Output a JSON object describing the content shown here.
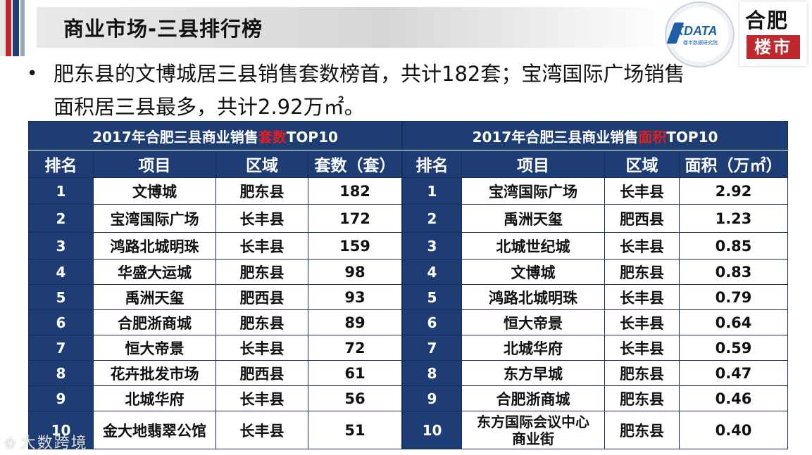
{
  "page": {
    "title": "商业市场-三县排行榜",
    "bullet_line1": "肥东县的文博城居三县销售套数榜首，共计182套；宝湾国际广场销售",
    "bullet_line2": "面积居三县最多，共计2.92万㎡。"
  },
  "logos": {
    "kdata_text": "KDATA",
    "kdata_sub": "楼市数据研究院",
    "hefei_top": "合肥",
    "hefei_bottom": "楼市"
  },
  "watermark": "大数跨境",
  "left_table": {
    "caption_prefix": "2017年合肥三县商业销售",
    "caption_highlight": "套数",
    "caption_suffix": "TOP10",
    "headers": [
      "排名",
      "项目",
      "区域",
      "套数（套）"
    ],
    "rows": [
      [
        "1",
        "文博城",
        "肥东县",
        "182"
      ],
      [
        "2",
        "宝湾国际广场",
        "长丰县",
        "172"
      ],
      [
        "3",
        "鸿路北城明珠",
        "长丰县",
        "159"
      ],
      [
        "4",
        "华盛大运城",
        "肥东县",
        "98"
      ],
      [
        "5",
        "禹洲天玺",
        "肥西县",
        "93"
      ],
      [
        "6",
        "合肥浙商城",
        "肥东县",
        "89"
      ],
      [
        "7",
        "恒大帝景",
        "长丰县",
        "72"
      ],
      [
        "8",
        "花卉批发市场",
        "肥西县",
        "61"
      ],
      [
        "9",
        "北城华府",
        "长丰县",
        "56"
      ],
      [
        "10",
        "金大地翡翠公馆",
        "长丰县",
        "51"
      ]
    ]
  },
  "right_table": {
    "caption_prefix": "2017年合肥三县商业销售",
    "caption_highlight": "面积",
    "caption_suffix": "TOP10",
    "headers": [
      "排名",
      "项目",
      "区域",
      "面积（万㎡）"
    ],
    "rows": [
      [
        "1",
        "宝湾国际广场",
        "长丰县",
        "2.92"
      ],
      [
        "2",
        "禹洲天玺",
        "肥西县",
        "1.23"
      ],
      [
        "3",
        "北城世纪城",
        "长丰县",
        "0.85"
      ],
      [
        "4",
        "文博城",
        "肥东县",
        "0.83"
      ],
      [
        "5",
        "鸿路北城明珠",
        "长丰县",
        "0.79"
      ],
      [
        "6",
        "恒大帝景",
        "长丰县",
        "0.64"
      ],
      [
        "7",
        "北城华府",
        "长丰县",
        "0.59"
      ],
      [
        "8",
        "东方早城",
        "肥东县",
        "0.47"
      ],
      [
        "9",
        "合肥浙商城",
        "肥东县",
        "0.46"
      ],
      [
        "10",
        "东方国际会议中心 商业街",
        "肥东县",
        "0.40"
      ]
    ],
    "last_project_line1": "东方国际会议中心",
    "last_project_line2": "商业街"
  },
  "colors": {
    "header_navy": "#1e3d75",
    "highlight_red": "#e02020",
    "stripe_red": "#c0262c"
  }
}
